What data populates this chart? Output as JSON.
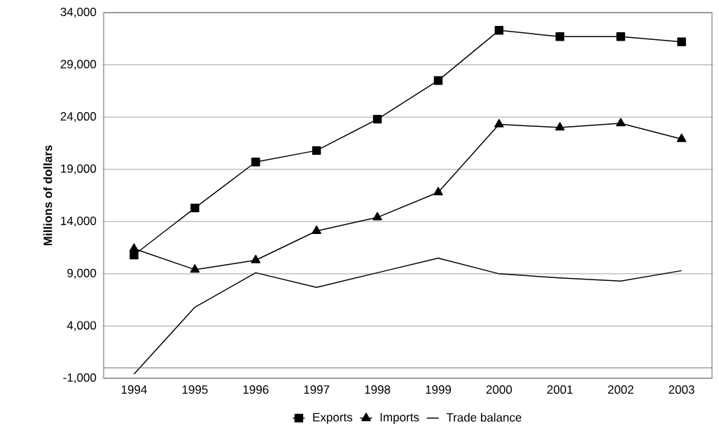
{
  "chart_data": {
    "type": "line",
    "ylabel": "Millions of dollars",
    "categories": [
      "1994",
      "1995",
      "1996",
      "1997",
      "1998",
      "1999",
      "2000",
      "2001",
      "2002",
      "2003"
    ],
    "series": [
      {
        "name": "Exports",
        "color": "#000000",
        "marker": "square",
        "values": [
          10800,
          15300,
          19700,
          20800,
          23800,
          27500,
          32300,
          31700,
          31700,
          31200
        ]
      },
      {
        "name": "Imports",
        "color": "#000000",
        "marker": "triangle",
        "values": [
          11400,
          9400,
          10300,
          13100,
          14400,
          16800,
          23300,
          23000,
          23400,
          21900
        ]
      },
      {
        "name": "Trade balance",
        "color": "#000000",
        "values": [
          -600,
          5800,
          9100,
          7700,
          9100,
          10500,
          9000,
          8600,
          8300,
          9300
        ]
      }
    ],
    "ylim": [
      -1000,
      34000
    ],
    "yticks": [
      {
        "value": -1000,
        "label": "-1,000"
      },
      {
        "value": 4000,
        "label": "4,000"
      },
      {
        "value": 9000,
        "label": "9,000"
      },
      {
        "value": 14000,
        "label": "14,000"
      },
      {
        "value": 19000,
        "label": "19,000"
      },
      {
        "value": 24000,
        "label": "24,000"
      },
      {
        "value": 29000,
        "label": "29,000"
      },
      {
        "value": 34000,
        "label": "34,000"
      }
    ],
    "grid": "y",
    "legend": "bottom",
    "line_style": "solid"
  }
}
